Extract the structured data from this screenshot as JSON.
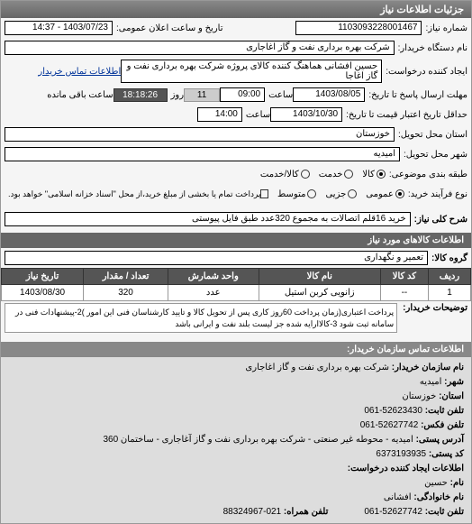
{
  "panel_title": "جزئیات اطلاعات نیاز",
  "fields": {
    "need_number_label": "شماره نیاز:",
    "need_number": "1103093228001467",
    "announce_label": "تاریخ و ساعت اعلان عمومی:",
    "announce_value": "1403/07/23 - 14:37",
    "device_name_label": "نام دستگاه خریدار:",
    "device_name": "شرکت بهره برداری نفت و گاز اغاجاری",
    "creator_label": "ایجاد کننده درخواست:",
    "creator": "حسین افشانی هماهنگ کننده کالای پروژه شرکت بهره برداری نفت و گاز اغاجا",
    "buyer_contact_link": "اطلاعات تماس خریدار",
    "deadline_send_label": "مهلت ارسال پاسخ تا تاریخ:",
    "deadline_date": "1403/08/05",
    "time_label1": "ساعت",
    "deadline_time": "09:00",
    "days_label": "روز",
    "days_value": "11",
    "remaining_time": "18:18:26",
    "remaining_label": "ساعت باقی مانده",
    "price_validity_label": "حداقل تاریخ اعتبار قیمت تا تاریخ:",
    "price_validity_date": "1403/10/30",
    "time_label2": "ساعت",
    "price_validity_time": "14:00",
    "province_label": "استان محل تحویل:",
    "province": "خوزستان",
    "city_label": "شهر محل تحویل:",
    "city": "امیدیه",
    "category_label": "طبقه بندی موضوعی:",
    "process_type_label": "نوع فرآیند خرید:",
    "payment_note": "پرداخت تمام یا بخشی از مبلغ خرید،از محل \"اسناد خزانه اسلامی\" خواهد بود.",
    "need_desc_label": "شرح کلی نیاز:",
    "need_desc": "خرید 16قلم اتصالات به مجموع 320عدد طبق فایل پیوستی",
    "goods_section": "اطلاعات کالاهای مورد نیاز",
    "goods_group_label": "گروه کالا:",
    "goods_group": "تعمیر و نگهداری",
    "buyer_notes_label": "توضیحات خریدار:",
    "buyer_notes": "پرداخت اعتباری(زمان پرداخت 60روز کاری پس از تحویل کالا و تایید کارشناسان فنی این امور )2-پیشنهادات فنی در سامانه ثبت شود 3-کالاارایه شده جز لیست بلند نفت و ایرانی باشد"
  },
  "category_options": [
    {
      "label": "کالا",
      "selected": true
    },
    {
      "label": "خدمت",
      "selected": false
    },
    {
      "label": "کالا/خدمت",
      "selected": false
    }
  ],
  "process_options": [
    {
      "label": "عمومی",
      "selected": true
    },
    {
      "label": "جزیی",
      "selected": false
    },
    {
      "label": "متوسط",
      "selected": false
    }
  ],
  "table": {
    "headers": [
      "ردیف",
      "کد کالا",
      "نام کالا",
      "واحد شمارش",
      "تعداد / مقدار",
      "تاریخ نیاز"
    ],
    "rows": [
      [
        "1",
        "--",
        "زانویی کربن استیل",
        "عدد",
        "320",
        "1403/08/30"
      ]
    ]
  },
  "contact": {
    "header": "اطلاعات تماس سازمان خریدار:",
    "org_label": "نام سازمان خریدار:",
    "org": "شرکت بهره برداری نفت و گاز اغاجاری",
    "city_label": "شهر:",
    "city": "امیدیه",
    "province_label": "استان:",
    "province": "خوزستان",
    "phone_label": "تلفن ثابت:",
    "phone": "52623430-061",
    "fax_label": "تلفن فکس:",
    "fax": "52627742-061",
    "postal_label": "آدرس پستی:",
    "postal": "امیدیه - محوطه غیر صنعتی - شرکت بهره برداری نفت و گاز آغاجاری - ساختمان 360",
    "postcode_label": "کد پستی:",
    "postcode": "6373193935",
    "requester_header": "اطلاعات ایجاد کننده درخواست:",
    "name_label": "نام:",
    "name": "حسین",
    "surname_label": "نام خانوادگی:",
    "surname": "افشانی",
    "phone2_label": "تلفن ثابت:",
    "phone2": "52627742-061",
    "ext_label": "تلفن همراه:",
    "ext": "021-88324967"
  }
}
